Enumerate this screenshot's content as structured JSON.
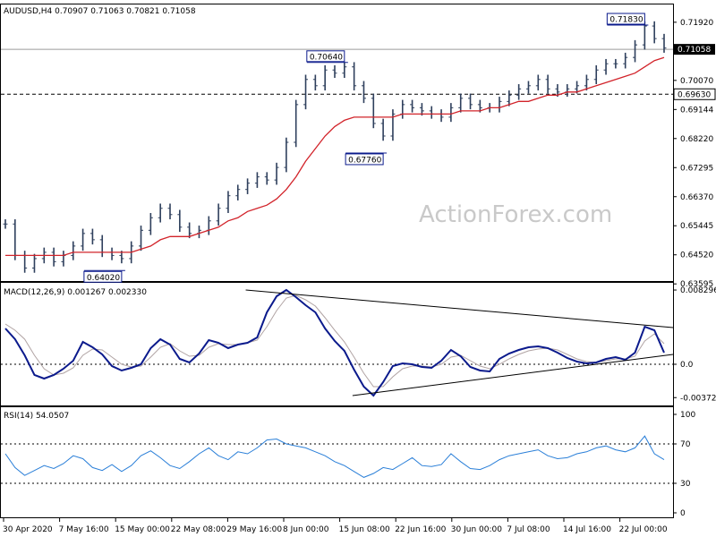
{
  "colors": {
    "price_bars": "#2e3f5c",
    "ma": "#d2232a",
    "macd": "#0b1a8c",
    "signal": "#b0a3a3",
    "rsi": "#2a7fd8",
    "grid_dash": "#000000",
    "watermark": "#c9c9c9",
    "label_box": "#0b1a8c"
  },
  "watermark": "ActionForex.com",
  "chart_data": [
    {
      "type": "candlestick",
      "title": "AUDUSD,H4  0.70907 0.71063 0.70821 0.71058",
      "ylim": [
        0.638,
        0.724
      ],
      "y_ticks": [
        "0.71920",
        "0.71058",
        "0.70070",
        "0.69144",
        "0.68220",
        "0.67295",
        "0.66370",
        "0.65445",
        "0.64520",
        "0.63595"
      ],
      "current_price": "0.71058",
      "support_level": "0.69630",
      "annotations": [
        {
          "text": "0.71830",
          "value": 0.7183
        },
        {
          "text": "0.70640",
          "value": 0.7064
        },
        {
          "text": "0.67760",
          "value": 0.6776
        },
        {
          "text": "0.64020",
          "value": 0.6402
        }
      ],
      "series": [
        {
          "name": "close",
          "values": [
            0.655,
            0.645,
            0.641,
            0.644,
            0.646,
            0.643,
            0.645,
            0.648,
            0.652,
            0.65,
            0.646,
            0.645,
            0.644,
            0.648,
            0.653,
            0.657,
            0.66,
            0.658,
            0.654,
            0.652,
            0.653,
            0.656,
            0.66,
            0.664,
            0.666,
            0.668,
            0.67,
            0.669,
            0.673,
            0.681,
            0.693,
            0.701,
            0.699,
            0.704,
            0.703,
            0.705,
            0.699,
            0.695,
            0.687,
            0.683,
            0.69,
            0.693,
            0.692,
            0.691,
            0.69,
            0.689,
            0.692,
            0.695,
            0.693,
            0.692,
            0.692,
            0.694,
            0.696,
            0.698,
            0.699,
            0.701,
            0.698,
            0.697,
            0.698,
            0.699,
            0.701,
            0.704,
            0.706,
            0.706,
            0.708,
            0.712,
            0.718,
            0.714,
            0.711
          ]
        },
        {
          "name": "ma",
          "values": [
            0.645,
            0.645,
            0.645,
            0.645,
            0.645,
            0.645,
            0.645,
            0.646,
            0.646,
            0.646,
            0.646,
            0.646,
            0.646,
            0.646,
            0.647,
            0.648,
            0.65,
            0.651,
            0.651,
            0.651,
            0.652,
            0.653,
            0.654,
            0.656,
            0.657,
            0.659,
            0.66,
            0.661,
            0.663,
            0.666,
            0.67,
            0.675,
            0.679,
            0.683,
            0.686,
            0.688,
            0.689,
            0.689,
            0.689,
            0.689,
            0.689,
            0.69,
            0.69,
            0.69,
            0.69,
            0.69,
            0.69,
            0.691,
            0.691,
            0.691,
            0.692,
            0.692,
            0.693,
            0.694,
            0.694,
            0.695,
            0.696,
            0.696,
            0.697,
            0.697,
            0.698,
            0.699,
            0.7,
            0.701,
            0.702,
            0.703,
            0.705,
            0.707,
            0.708
          ]
        }
      ]
    },
    {
      "type": "line",
      "title": "MACD(12,26,9) 0.001267 0.002330",
      "ylim": [
        -0.0045,
        0.0088
      ],
      "y_ticks": [
        "0.008296",
        "0.0",
        "-0.003725"
      ],
      "trendlines": [
        {
          "from": [
            0.36,
            0.0083
          ],
          "to": [
            1.0,
            0.0041
          ]
        },
        {
          "from": [
            0.52,
            -0.0035
          ],
          "to": [
            1.0,
            0.0011
          ]
        }
      ],
      "series": [
        {
          "name": "macd",
          "values": [
            0.004,
            0.0028,
            0.001,
            -0.0012,
            -0.0016,
            -0.0012,
            -0.0005,
            0.0004,
            0.0025,
            0.0019,
            0.0011,
            -0.0002,
            -0.0007,
            -0.0004,
            0.0,
            0.0018,
            0.0028,
            0.0022,
            0.0006,
            0.0002,
            0.0012,
            0.0027,
            0.0024,
            0.0018,
            0.0022,
            0.0024,
            0.003,
            0.0058,
            0.0076,
            0.0083,
            0.0075,
            0.0066,
            0.0058,
            0.004,
            0.0026,
            0.0015,
            -0.0006,
            -0.0025,
            -0.0035,
            -0.002,
            -0.0002,
            0.0001,
            0.0,
            -0.0003,
            -0.0004,
            0.0004,
            0.0016,
            0.0009,
            -0.0003,
            -0.0007,
            -0.0008,
            0.0006,
            0.0012,
            0.0016,
            0.0019,
            0.002,
            0.0018,
            0.0013,
            0.0007,
            0.0003,
            0.0001,
            0.0002,
            0.0006,
            0.0008,
            0.0005,
            0.0013,
            0.0042,
            0.0038,
            0.0013
          ]
        },
        {
          "name": "signal",
          "values": [
            0.0045,
            0.0038,
            0.0028,
            0.001,
            -0.0005,
            -0.0012,
            -0.001,
            -0.0004,
            0.001,
            0.0017,
            0.0016,
            0.0008,
            0.0,
            -0.0003,
            -0.0002,
            0.0008,
            0.0019,
            0.0023,
            0.0015,
            0.0009,
            0.001,
            0.0019,
            0.0023,
            0.0022,
            0.0022,
            0.0024,
            0.0027,
            0.0042,
            0.006,
            0.0074,
            0.0077,
            0.0072,
            0.0065,
            0.0052,
            0.0038,
            0.0025,
            0.0008,
            -0.001,
            -0.0025,
            -0.0025,
            -0.0014,
            -0.0005,
            -0.0002,
            -0.0002,
            -0.0003,
            0.0,
            0.0008,
            0.001,
            0.0004,
            -0.0002,
            -0.0005,
            0.0,
            0.0006,
            0.0011,
            0.0015,
            0.0017,
            0.0018,
            0.0016,
            0.0011,
            0.0006,
            0.0003,
            0.0002,
            0.0004,
            0.0006,
            0.0006,
            0.0009,
            0.0026,
            0.0034,
            0.0023
          ]
        }
      ]
    },
    {
      "type": "line",
      "title": "RSI(14) 54.0507",
      "ylim": [
        0,
        100
      ],
      "y_ticks": [
        "100",
        "70",
        "30",
        "0"
      ],
      "series": [
        {
          "name": "rsi",
          "values": [
            60,
            46,
            38,
            43,
            48,
            45,
            50,
            58,
            55,
            46,
            43,
            49,
            42,
            48,
            58,
            63,
            56,
            48,
            45,
            52,
            60,
            66,
            58,
            54,
            62,
            60,
            66,
            74,
            75,
            70,
            68,
            66,
            62,
            58,
            52,
            48,
            42,
            36,
            40,
            46,
            44,
            50,
            56,
            48,
            47,
            49,
            60,
            52,
            45,
            44,
            48,
            54,
            58,
            60,
            62,
            64,
            58,
            55,
            56,
            60,
            62,
            66,
            68,
            64,
            62,
            66,
            78,
            60,
            54
          ]
        }
      ]
    }
  ],
  "x_ticks": [
    "30 Apr 2020",
    "7 May 16:00",
    "15 May 00:00",
    "22 May 08:00",
    "29 May 16:00",
    "8 Jun 00:00",
    "15 Jun 08:00",
    "22 Jun 16:00",
    "30 Jun 00:00",
    "7 Jul 08:00",
    "14 Jul 16:00",
    "22 Jul 00:00"
  ]
}
